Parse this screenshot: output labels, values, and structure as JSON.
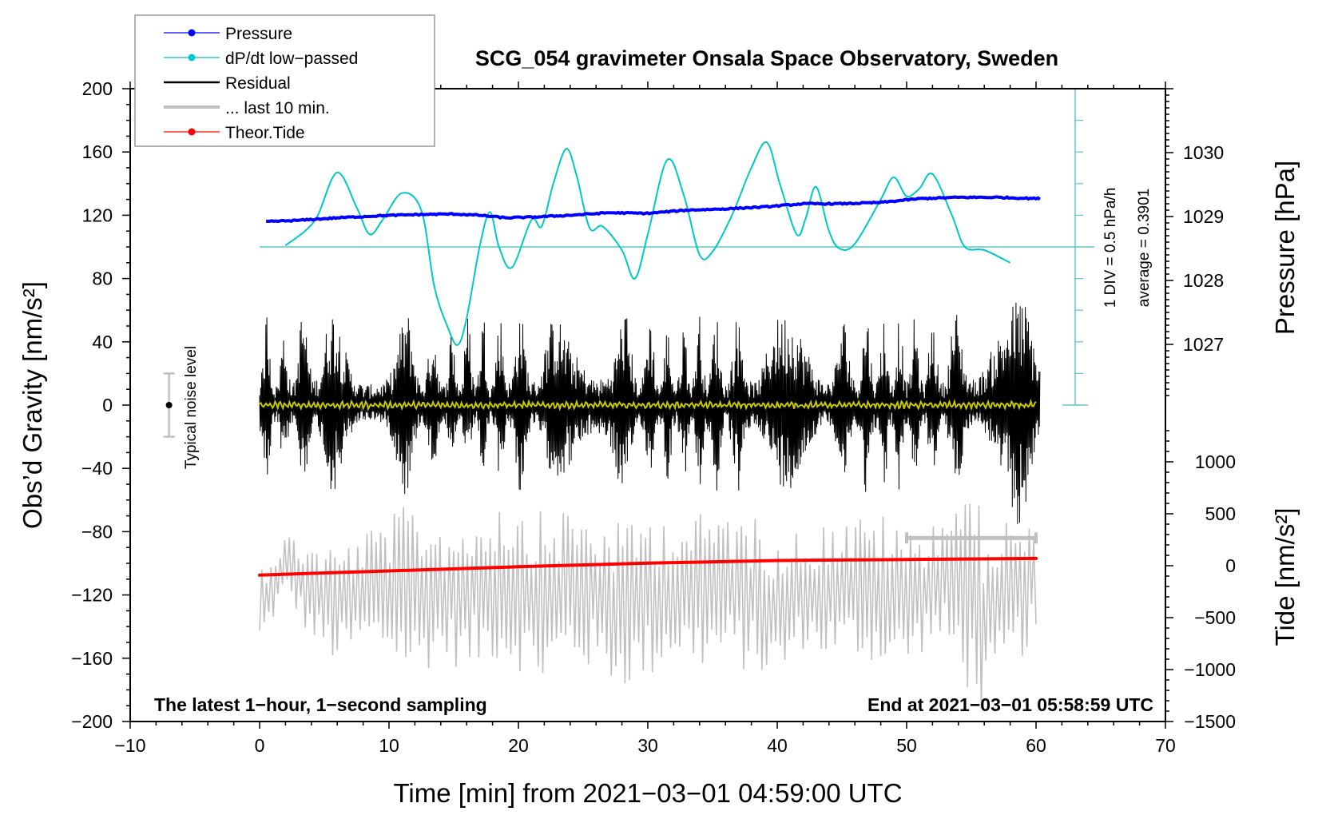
{
  "chart_data": {
    "type": "line",
    "title": "SCG_054 gravimeter Onsala Space Observatory, Sweden",
    "xlabel": "Time [min] from 2021−03−01 04:59:00 UTC",
    "ylabel_left": "Obs’d Gravity [nm/s²]",
    "ylabel_right_top": "Pressure [hPa]",
    "ylabel_right_bottom": "Tide [nm/s²]",
    "xlim": [
      -10,
      70
    ],
    "ylim": [
      -200,
      200
    ],
    "x_ticks": [
      -10,
      0,
      10,
      20,
      30,
      40,
      50,
      60,
      70
    ],
    "x_tick_labels": [
      "−10",
      "0",
      "10",
      "20",
      "30",
      "40",
      "50",
      "60",
      "70"
    ],
    "y_ticks": [
      200,
      160,
      120,
      80,
      40,
      0,
      -40,
      -80,
      -120,
      -160,
      -200
    ],
    "y_tick_labels": [
      "200",
      "160",
      "120",
      "80",
      "40",
      "0",
      "−40",
      "−80",
      "−120",
      "−160",
      "−200"
    ],
    "pressure_axis": {
      "ticks": [
        1030,
        1029,
        1028,
        1027
      ],
      "labels": [
        "1030",
        "1029",
        "1028",
        "1027"
      ],
      "range": [
        1026.0,
        1031.0
      ]
    },
    "tide_axis": {
      "ticks": [
        1000,
        500,
        0,
        -500,
        -1000,
        -1500
      ],
      "labels": [
        "1000",
        "500",
        "0",
        "−500",
        "−1000",
        "−1500"
      ],
      "range": [
        -1500,
        1500
      ]
    },
    "dpdt_scale": {
      "div_label": "1 DIV = 0.5 hPa/h",
      "average_label": "average = 0.3901",
      "baseline_gravity": 100
    },
    "legend": {
      "position": "top-left",
      "entries": [
        {
          "label": "Pressure",
          "color": "#0000ff",
          "marker": true
        },
        {
          "label": "dP/dt low−passed",
          "color": "#00c8c8",
          "marker": true
        },
        {
          "label": "Residual",
          "color": "#000000",
          "marker": false
        },
        {
          "label": "... last 10 min.",
          "color": "#c0c0c0",
          "marker": false
        },
        {
          "label": "Theor.Tide",
          "color": "#ff0000",
          "marker": true
        }
      ]
    },
    "noise_level": {
      "label": "Typical noise level",
      "x": -7,
      "center": 0,
      "half_range": 20
    },
    "last10_bar": {
      "x_start": 50,
      "x_end": 60,
      "gravity": -84
    },
    "annotations": {
      "bottom_left": "The latest 1−hour, 1−second sampling",
      "bottom_right": "End at 2021−03−01 05:58:59 UTC"
    },
    "series": [
      {
        "name": "Pressure",
        "axis": "pressure",
        "color": "#0000ff",
        "x": [
          0.5,
          3,
          6,
          9,
          12,
          15,
          17,
          19,
          21,
          24,
          27,
          30,
          33,
          36,
          39,
          42,
          45,
          48,
          51,
          54,
          57,
          60.3
        ],
        "values": [
          1028.92,
          1028.94,
          1028.98,
          1029.01,
          1029.03,
          1029.04,
          1029.02,
          1028.98,
          1028.99,
          1029.02,
          1029.06,
          1029.05,
          1029.1,
          1029.12,
          1029.15,
          1029.2,
          1029.2,
          1029.22,
          1029.28,
          1029.3,
          1029.3,
          1029.28
        ]
      },
      {
        "name": "dP/dt low-passed",
        "axis": "gravity_offset",
        "color": "#00c8c8",
        "x": [
          2,
          3.5,
          4.5,
          6,
          7.5,
          8.5,
          9.5,
          11,
          12.5,
          13.5,
          14.5,
          15.3,
          16,
          17,
          17.8,
          18.5,
          19.5,
          21,
          21.8,
          22.7,
          23.7,
          24.5,
          25.5,
          26.5,
          28,
          29,
          30,
          31.5,
          32.8,
          34,
          35,
          36.5,
          38,
          39.2,
          40.2,
          41.5,
          42.2,
          43,
          44,
          44.8,
          46,
          48,
          49,
          50,
          51,
          52,
          53.5,
          54.5,
          56,
          58
        ],
        "values": [
          101,
          110,
          120,
          147,
          125,
          108,
          117,
          134,
          123,
          75,
          50,
          38,
          55,
          100,
          122,
          100,
          87,
          117,
          113,
          140,
          162,
          145,
          112,
          113,
          98,
          80,
          108,
          155,
          132,
          95,
          97,
          120,
          150,
          166,
          140,
          108,
          118,
          138,
          110,
          99,
          102,
          130,
          144,
          132,
          137,
          146,
          120,
          100,
          98,
          90
        ]
      },
      {
        "name": "Residual",
        "axis": "gravity",
        "color": "#000000",
        "x_range": [
          0,
          60.3
        ],
        "envelope_min": [
          -70,
          -40,
          -50,
          -60,
          -55,
          -35,
          -40,
          -60,
          -55,
          -40,
          -48,
          -50,
          -45,
          -55,
          -60,
          -45,
          -50,
          -58,
          -95,
          -55,
          -45,
          -50,
          -55,
          -65,
          -55,
          -60,
          -45,
          -55,
          -50,
          -48,
          -50,
          -58,
          -60,
          -55,
          -45,
          -50,
          -55,
          -48,
          -55,
          -80,
          -52
        ],
        "envelope_max": [
          72,
          45,
          60,
          70,
          60,
          45,
          55,
          58,
          62,
          50,
          50,
          62,
          58,
          60,
          62,
          58,
          50,
          55,
          78,
          55,
          60,
          50,
          58,
          62,
          55,
          58,
          60,
          58,
          55,
          60,
          55,
          62,
          58,
          60,
          55,
          58,
          62,
          70,
          60,
          70,
          73
        ]
      },
      {
        "name": "... last 10 min.",
        "axis": "gravity",
        "color": "#c0c0c0",
        "x_range": [
          0,
          60
        ],
        "envelope_min": [
          -155,
          -120,
          -150,
          -165,
          -155,
          -160,
          -175,
          -160,
          -170,
          -162,
          -168,
          -180,
          -163,
          -170,
          -180,
          -175,
          -160,
          -168,
          -165,
          -170,
          -178,
          -155,
          -162,
          -160,
          -165,
          -168,
          -150,
          -170,
          -200,
          -168,
          -150
        ],
        "envelope_max": [
          -100,
          -80,
          -85,
          -88,
          -80,
          -70,
          -60,
          -75,
          -70,
          -58,
          -60,
          -68,
          -62,
          -70,
          -75,
          -65,
          -70,
          -68,
          -62,
          -70,
          -75,
          -80,
          -72,
          -70,
          -68,
          -80,
          -72,
          -45,
          -68,
          -70,
          -75
        ]
      },
      {
        "name": "Theor.Tide",
        "axis": "tide",
        "color": "#ff0000",
        "x": [
          0,
          10,
          20,
          30,
          40,
          50,
          60
        ],
        "values": [
          -90,
          -50,
          -10,
          25,
          50,
          60,
          70
        ]
      },
      {
        "name": "Mean residual",
        "axis": "gravity",
        "color": "#c8c800",
        "x_range": [
          0,
          60
        ],
        "amplitude": 2
      }
    ]
  }
}
